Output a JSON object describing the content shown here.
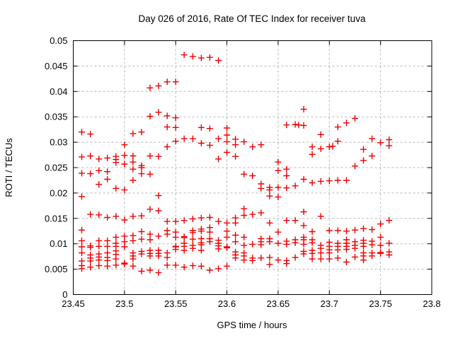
{
  "chart_data": {
    "type": "scatter",
    "title": "Day 026 of 2016, Rate Of TEC Index for receiver tuva",
    "xlabel": "GPS time / hours",
    "ylabel": "ROTI / TECUs",
    "xlim": [
      23.45,
      23.8
    ],
    "ylim": [
      0,
      0.05
    ],
    "x_ticks": {
      "values": [
        23.45,
        23.5,
        23.55,
        23.6,
        23.65,
        23.7,
        23.75,
        23.8
      ],
      "labels": [
        "23.45",
        "23.5",
        "23.55",
        "23.6",
        "23.65",
        "23.7",
        "23.75",
        "23.8"
      ]
    },
    "y_ticks": {
      "values": [
        0,
        0.005,
        0.01,
        0.015,
        0.02,
        0.025,
        0.03,
        0.035,
        0.04,
        0.045,
        0.05
      ],
      "labels": [
        "0",
        "0.005",
        "0.01",
        "0.015",
        "0.02",
        "0.025",
        "0.03",
        "0.035",
        "0.04",
        "0.045",
        "0.05"
      ]
    },
    "grid": true,
    "legend_position": "none",
    "marker": {
      "shape": "plus",
      "color": "#ee0000",
      "size": 9
    },
    "grid_color": "#b8b8b8",
    "border_color": "#000000",
    "background_color": "#ffffff",
    "series": [
      {
        "name": "ROTI",
        "epochs": [
          [
            23.4583,
            [
              0.032,
              0.0271,
              0.0239,
              0.0193,
              0.0127,
              0.0106,
              0.0094,
              0.0082,
              0.0066,
              0.0057,
              0.0051
            ]
          ],
          [
            23.4667,
            [
              0.0316,
              0.0273,
              0.0238,
              0.0158,
              0.0096,
              0.0093,
              0.0078,
              0.0072,
              0.0066,
              0.0054
            ]
          ],
          [
            23.475,
            [
              0.0267,
              0.0244,
              0.0217,
              0.0157,
              0.0106,
              0.0095,
              0.008,
              0.0074,
              0.0068,
              0.0057
            ]
          ],
          [
            23.4833,
            [
              0.0269,
              0.0242,
              0.0227,
              0.0152,
              0.0106,
              0.0095,
              0.0082,
              0.0073,
              0.0067,
              0.0056
            ]
          ],
          [
            23.4917,
            [
              0.0272,
              0.0266,
              0.026,
              0.0209,
              0.0154,
              0.0113,
              0.0101,
              0.0095,
              0.0086,
              0.0079,
              0.007,
              0.0058
            ]
          ],
          [
            23.5,
            [
              0.0295,
              0.0274,
              0.0257,
              0.0206,
              0.0147,
              0.0115,
              0.0104,
              0.0094,
              0.0062,
              0.006
            ]
          ],
          [
            23.5083,
            [
              0.0317,
              0.0273,
              0.0261,
              0.0247,
              0.0225,
              0.0154,
              0.0116,
              0.0106,
              0.0082,
              0.0076,
              0.007,
              0.0056
            ]
          ],
          [
            23.5167,
            [
              0.032,
              0.0254,
              0.025,
              0.0238,
              0.0155,
              0.0124,
              0.0109,
              0.0085,
              0.008,
              0.0046
            ]
          ],
          [
            23.525,
            [
              0.0407,
              0.0351,
              0.0273,
              0.0237,
              0.0168,
              0.0119,
              0.0108,
              0.0087,
              0.0081,
              0.0076,
              0.0048
            ]
          ],
          [
            23.5333,
            [
              0.0411,
              0.0359,
              0.0272,
              0.0195,
              0.0165,
              0.0115,
              0.0087,
              0.0081,
              0.0076,
              0.0043
            ]
          ],
          [
            23.5417,
            [
              0.0419,
              0.0352,
              0.033,
              0.0291,
              0.0144,
              0.0126,
              0.0119,
              0.0082,
              0.0073,
              0.0058
            ]
          ],
          [
            23.55,
            [
              0.0419,
              0.0348,
              0.0329,
              0.0302,
              0.0144,
              0.0123,
              0.0113,
              0.0095,
              0.0094,
              0.0089,
              0.0058
            ]
          ],
          [
            23.5583,
            [
              0.0472,
              0.0307,
              0.0146,
              0.0114,
              0.0112,
              0.0101,
              0.0095,
              0.0087,
              0.0054
            ]
          ],
          [
            23.5667,
            [
              0.0469,
              0.0307,
              0.0149,
              0.0126,
              0.0122,
              0.0109,
              0.0097,
              0.0091,
              0.0057
            ]
          ],
          [
            23.575,
            [
              0.0466,
              0.0329,
              0.0298,
              0.0151,
              0.0129,
              0.0125,
              0.011,
              0.0102,
              0.0098,
              0.0087,
              0.0056
            ]
          ],
          [
            23.5833,
            [
              0.0467,
              0.0327,
              0.0294,
              0.0152,
              0.0132,
              0.0123,
              0.011,
              0.0104,
              0.0048
            ]
          ],
          [
            23.5917,
            [
              0.0461,
              0.0307,
              0.0267,
              0.0144,
              0.0107,
              0.0101,
              0.0096,
              0.009,
              0.0051
            ]
          ],
          [
            23.6,
            [
              0.0328,
              0.0314,
              0.0301,
              0.028,
              0.0141,
              0.0125,
              0.0113,
              0.0094,
              0.0092,
              0.0056
            ]
          ],
          [
            23.6083,
            [
              0.0306,
              0.0295,
              0.0272,
              0.0151,
              0.0141,
              0.0117,
              0.0104,
              0.0084,
              0.0078,
              0.0072
            ]
          ],
          [
            23.6167,
            [
              0.0301,
              0.0237,
              0.0169,
              0.0156,
              0.0113,
              0.0097,
              0.0082,
              0.0076,
              0.0068
            ]
          ],
          [
            23.625,
            [
              0.0291,
              0.0234,
              0.0158,
              0.0099,
              0.0072,
              0.0067
            ]
          ],
          [
            23.6333,
            [
              0.0295,
              0.0218,
              0.0209,
              0.0161,
              0.011,
              0.0104,
              0.0098,
              0.0072
            ]
          ],
          [
            23.6417,
            [
              0.0211,
              0.0206,
              0.0194,
              0.0141,
              0.011,
              0.0104,
              0.0073,
              0.0059
            ]
          ],
          [
            23.65,
            [
              0.0261,
              0.0244,
              0.0211,
              0.0192,
              0.0123,
              0.0101,
              0.0068
            ]
          ],
          [
            23.6583,
            [
              0.0334,
              0.0247,
              0.0234,
              0.021,
              0.0146,
              0.0105,
              0.0099,
              0.0067,
              0.0061
            ]
          ],
          [
            23.6667,
            [
              0.0335,
              0.0214,
              0.0146,
              0.0108,
              0.0102,
              0.0073
            ]
          ],
          [
            23.67,
            [
              0.0334
            ]
          ],
          [
            23.675,
            [
              0.0365,
              0.0333,
              0.0227,
              0.0163,
              0.0136,
              0.0113,
              0.0108,
              0.0099,
              0.0085,
              0.008
            ]
          ],
          [
            23.6833,
            [
              0.0291,
              0.0276,
              0.022,
              0.0124,
              0.0108,
              0.0102,
              0.0087,
              0.0081,
              0.007
            ]
          ],
          [
            23.6917,
            [
              0.0315,
              0.0287,
              0.0223,
              0.0154,
              0.0097,
              0.0091,
              0.0082,
              0.007
            ]
          ],
          [
            23.7,
            [
              0.0291,
              0.0224,
              0.0126,
              0.0103,
              0.0095,
              0.0088,
              0.0082,
              0.007
            ]
          ],
          [
            23.7033,
            [
              0.0292
            ]
          ],
          [
            23.7083,
            [
              0.033,
              0.0302,
              0.0225,
              0.0126,
              0.0101,
              0.0095,
              0.0088,
              0.0072
            ]
          ],
          [
            23.7167,
            [
              0.0338,
              0.0225,
              0.0125,
              0.0108,
              0.0101,
              0.0095,
              0.0089,
              0.0064
            ]
          ],
          [
            23.725,
            [
              0.0347,
              0.0253,
              0.0127,
              0.0104,
              0.0097,
              0.0091,
              0.0074
            ]
          ],
          [
            23.7333,
            [
              0.0286,
              0.0264,
              0.013,
              0.0107,
              0.0101,
              0.0095,
              0.0082,
              0.0076,
              0.0068
            ]
          ],
          [
            23.7417,
            [
              0.0307,
              0.0273,
              0.0128,
              0.0105,
              0.0098,
              0.0082,
              0.0076
            ]
          ],
          [
            23.75,
            [
              0.0299,
              0.0139,
              0.0113,
              0.0097,
              0.0083,
              0.0081
            ]
          ],
          [
            23.7583,
            [
              0.0305,
              0.0293,
              0.0146,
              0.0101,
              0.0084,
              0.0078
            ]
          ]
        ]
      }
    ]
  }
}
